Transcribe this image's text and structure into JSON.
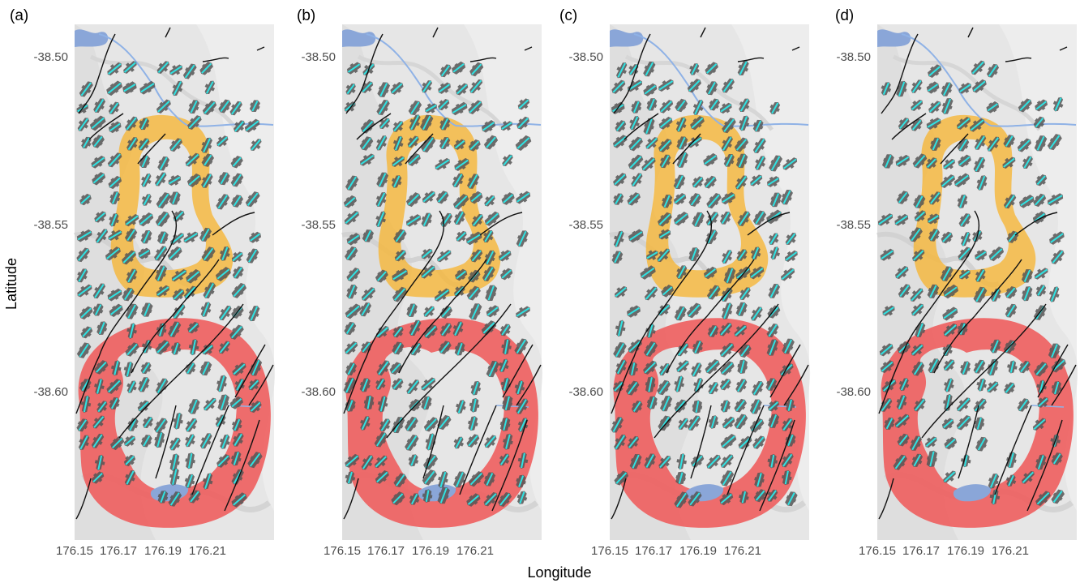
{
  "figure": {
    "xlabel": "Longitude",
    "ylabel": "Latitude"
  },
  "panels": [
    {
      "label": "(a)"
    },
    {
      "label": "(b)"
    },
    {
      "label": "(c)"
    },
    {
      "label": "(d)"
    }
  ],
  "axes": {
    "x_ticks": [
      "176.15",
      "176.17",
      "176.19",
      "176.21"
    ],
    "y_ticks": [
      "-38.50",
      "-38.55",
      "-38.60"
    ]
  },
  "colors": {
    "background": "#e8e8e8",
    "northern_ring": "#f5b942",
    "southern_ring": "#ef5b5b",
    "rose_petal": "#555555",
    "mean_direction": "#2fe3e3",
    "fault_line": "#111111",
    "river": "#8fb2e6",
    "lake": "#8aa6d8"
  },
  "map_data": {
    "lon_range": [
      176.15,
      176.23
    ],
    "lat_range": [
      -38.638,
      -38.486
    ]
  }
}
